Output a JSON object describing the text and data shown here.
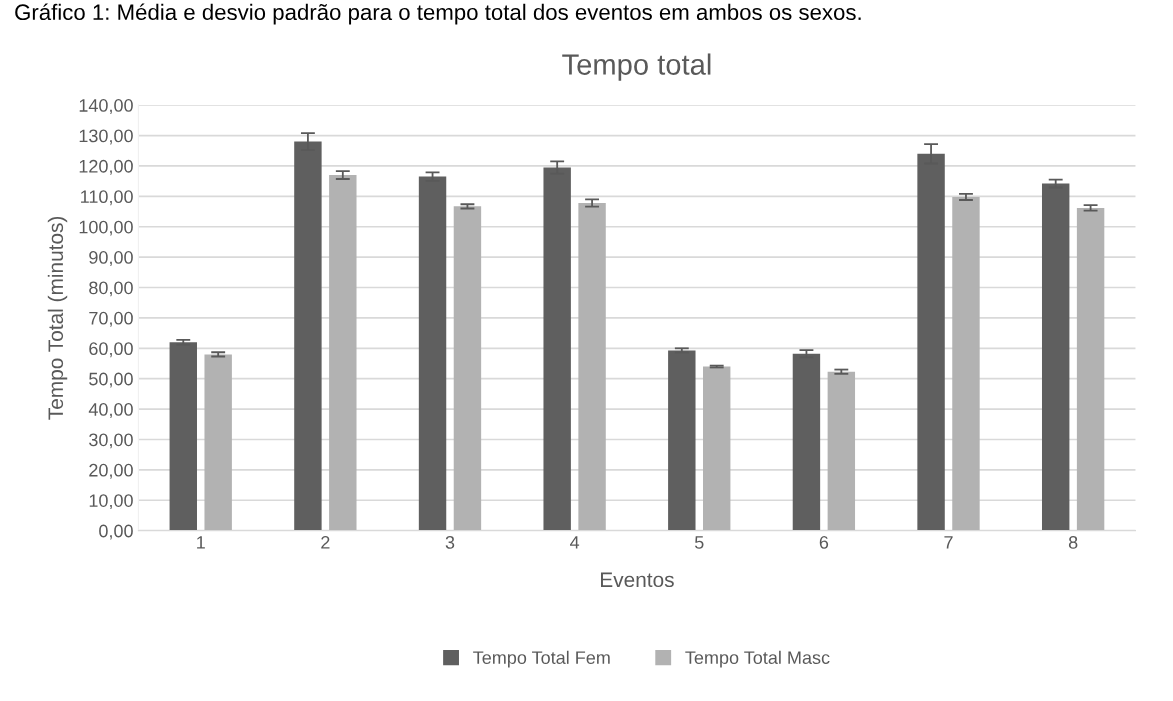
{
  "chart_data": {
    "type": "bar",
    "title": "Tempo total",
    "xlabel": "Eventos",
    "ylabel": "Tempo Total (minutos)",
    "annotations": [
      "Gráfico 1: Média e desvio padrão para o tempo total dos eventos em ambos os sexos."
    ],
    "categories": [
      "1",
      "2",
      "3",
      "4",
      "5",
      "6",
      "7",
      "8"
    ],
    "series": [
      {
        "name": "Tempo Total Fem",
        "color": "#5f5f5f",
        "values": [
          62,
          128,
          116.5,
          119.5,
          59.3,
          58.2,
          124,
          114.2
        ],
        "errors": [
          0.8,
          2.8,
          1.4,
          2.0,
          0.7,
          1.2,
          3.2,
          1.3
        ]
      },
      {
        "name": "Tempo Total Masc",
        "color": "#b2b2b2",
        "values": [
          58,
          117,
          106.7,
          107.8,
          54,
          52.3,
          109.8,
          106.2
        ],
        "errors": [
          0.7,
          1.3,
          0.7,
          1.2,
          0.3,
          0.7,
          1.0,
          0.9
        ]
      }
    ],
    "ylim": [
      0,
      140
    ],
    "yticks": [
      {
        "value": 0,
        "label": "0,00"
      },
      {
        "value": 10,
        "label": "10,00"
      },
      {
        "value": 20,
        "label": "20,00"
      },
      {
        "value": 30,
        "label": "30,00"
      },
      {
        "value": 40,
        "label": "40,00"
      },
      {
        "value": 50,
        "label": "50,00"
      },
      {
        "value": 60,
        "label": "60,00"
      },
      {
        "value": 70,
        "label": "70,00"
      },
      {
        "value": 80,
        "label": "80,00"
      },
      {
        "value": 90,
        "label": "90,00"
      },
      {
        "value": 100,
        "label": "100,00"
      },
      {
        "value": 110,
        "label": "110,00"
      },
      {
        "value": 120,
        "label": "120,00"
      },
      {
        "value": 130,
        "label": "130,00"
      },
      {
        "value": 140,
        "label": "140,00"
      }
    ],
    "grid": "y",
    "legend": "bottom"
  }
}
